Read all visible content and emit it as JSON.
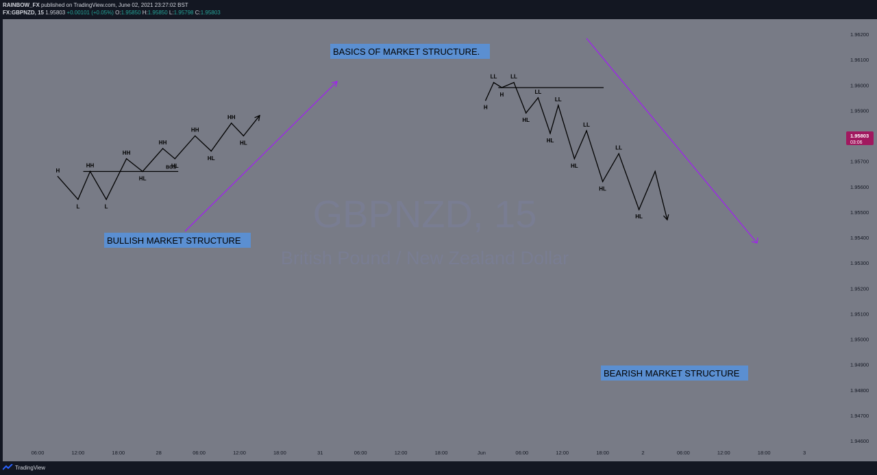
{
  "header": {
    "author": "RAINBOW_FX",
    "published_text": "published on TradingView.com, June 02, 2021 23:27:02 BST",
    "symbol": "FX:GBPNZD, 15",
    "last": "1.95803",
    "change": "+0.00101 (+0.05%)",
    "o_label": "O:",
    "o_value": "1.95850",
    "h_label": "H:",
    "h_value": "1.95850",
    "l_label": "L:",
    "l_value": "1.95798",
    "c_label": "C:",
    "c_value": "1.95803"
  },
  "footer": {
    "brand": "TradingView"
  },
  "colors": {
    "chart_bg": "#787b86",
    "frame_bg": "#131722",
    "text": "#d1d4dc",
    "up": "#26a69a",
    "price_badge": "#a1185f",
    "arrow_purple": "#a020f0",
    "label_box": "#5b8fd1",
    "structure_line": "#000000"
  },
  "chart_data": {
    "type": "line",
    "watermark_symbol": "GBPNZD, 15",
    "watermark_name": "British Pound / New Zealand Dollar",
    "title": "BASICS OF MARKET STRUCTURE.",
    "y_ticks": [
      "1.96200",
      "1.96100",
      "1.96000",
      "1.95900",
      "1.95700",
      "1.95600",
      "1.95500",
      "1.95400",
      "1.95300",
      "1.95200",
      "1.95100",
      "1.95000",
      "1.94900",
      "1.94800",
      "1.94700",
      "1.94600"
    ],
    "x_ticks": [
      "06:00",
      "12:00",
      "18:00",
      "28",
      "06:00",
      "12:00",
      "18:00",
      "31",
      "06:00",
      "12:00",
      "18:00",
      "Jun",
      "06:00",
      "12:00",
      "18:00",
      "2",
      "06:00",
      "12:00",
      "18:00",
      "3"
    ],
    "current_price": "1.95803",
    "countdown": "03:06",
    "bullish_structure": {
      "label": "BULLISH MARKET STRUCTURE",
      "points": [
        {
          "x": 0.5,
          "y": 1.9564
        },
        {
          "x": 1.0,
          "y": 1.9555
        },
        {
          "x": 1.3,
          "y": 1.9566
        },
        {
          "x": 1.7,
          "y": 1.9555
        },
        {
          "x": 2.2,
          "y": 1.9571
        },
        {
          "x": 2.6,
          "y": 1.9566
        },
        {
          "x": 3.1,
          "y": 1.9575
        },
        {
          "x": 3.4,
          "y": 1.9571
        },
        {
          "x": 3.9,
          "y": 1.958
        },
        {
          "x": 4.3,
          "y": 1.9574
        },
        {
          "x": 4.8,
          "y": 1.9585
        },
        {
          "x": 5.1,
          "y": 1.958
        },
        {
          "x": 5.5,
          "y": 1.9588
        }
      ],
      "bos_label": "BOS",
      "pivot_labels": [
        "H",
        "L",
        "HH",
        "L",
        "HH",
        "HL",
        "HH",
        "HL",
        "HH",
        "HL",
        "HH",
        "HL"
      ]
    },
    "bearish_structure": {
      "label": "BEARISH MARKET STRUCTURE",
      "points": [
        {
          "x": 11.1,
          "y": 1.9594
        },
        {
          "x": 11.3,
          "y": 1.9601
        },
        {
          "x": 11.5,
          "y": 1.9599
        },
        {
          "x": 11.8,
          "y": 1.9601
        },
        {
          "x": 12.1,
          "y": 1.9589
        },
        {
          "x": 12.4,
          "y": 1.9595
        },
        {
          "x": 12.7,
          "y": 1.9581
        },
        {
          "x": 12.9,
          "y": 1.9592
        },
        {
          "x": 13.3,
          "y": 1.9571
        },
        {
          "x": 13.6,
          "y": 1.9582
        },
        {
          "x": 14.0,
          "y": 1.9562
        },
        {
          "x": 14.4,
          "y": 1.9573
        },
        {
          "x": 14.9,
          "y": 1.9551
        },
        {
          "x": 15.3,
          "y": 1.9566
        },
        {
          "x": 15.6,
          "y": 1.9547
        }
      ],
      "pivot_labels": [
        "H",
        "LL",
        "H",
        "LL",
        "HL",
        "LL",
        "HL",
        "LL",
        "HL",
        "LL",
        "HL",
        "LL",
        "HL"
      ]
    },
    "grid": false
  }
}
